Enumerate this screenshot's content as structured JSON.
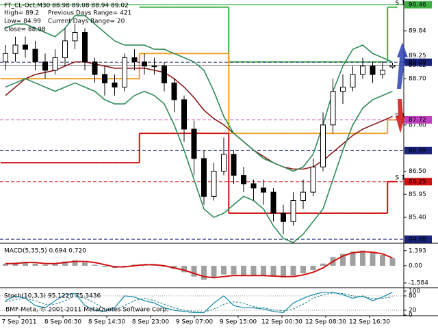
{
  "chart_data": [
    {
      "type": "candlestick",
      "title": "FT_CL-Oct,M30  88.98 89.08 88.94 89.02",
      "info": [
        "High= 89.2",
        "Low= 84.99",
        "Close= 88.98"
      ],
      "ranges": [
        "Previous Days Range= 421",
        "Current Days Range= 20"
      ],
      "x_labels": [
        "7 Sep 2011",
        "8 Sep 06:30",
        "8 Sep 14:30",
        "8 Sep 23:00",
        "9 Sep 07:00",
        "9 Sep 15:00",
        "12 Sep 00:30",
        "12 Sep 08:30",
        "12 Sep 16:30"
      ],
      "open": [
        89.1,
        89.3,
        89.5,
        89.4,
        89.1,
        88.9,
        89.2,
        89.6,
        89.8,
        89.1,
        88.8,
        88.6,
        88.5,
        89.2,
        89.1,
        89.0,
        89.0,
        88.6,
        88.2,
        87.5,
        86.8,
        85.9,
        86.5,
        86.9,
        86.4,
        86.2,
        86.1,
        86.0,
        85.5,
        85.3,
        85.8,
        86.0,
        86.6,
        87.6,
        88.4,
        88.5,
        88.8,
        89.0,
        88.8,
        88.98
      ],
      "high": [
        89.5,
        89.7,
        89.7,
        89.6,
        89.3,
        89.4,
        89.9,
        90.0,
        89.9,
        89.2,
        89.0,
        88.8,
        89.3,
        89.4,
        89.3,
        89.2,
        89.1,
        88.7,
        88.3,
        87.7,
        87.0,
        86.7,
        87.3,
        87.0,
        86.6,
        86.3,
        86.3,
        86.1,
        85.7,
        86.0,
        86.3,
        86.8,
        87.9,
        88.7,
        88.8,
        89.0,
        89.2,
        89.1,
        89.1,
        89.08
      ],
      "low": [
        88.9,
        89.1,
        89.2,
        88.9,
        88.7,
        88.8,
        89.0,
        89.4,
        88.9,
        88.6,
        88.3,
        88.3,
        88.4,
        88.9,
        88.8,
        88.8,
        88.4,
        87.9,
        87.2,
        86.4,
        85.7,
        85.8,
        86.4,
        86.2,
        86.0,
        85.8,
        85.7,
        85.3,
        85.0,
        85.2,
        85.6,
        85.9,
        86.5,
        87.4,
        88.1,
        88.4,
        88.7,
        88.6,
        88.7,
        88.94
      ],
      "close": [
        89.3,
        89.5,
        89.4,
        89.1,
        88.9,
        89.2,
        89.6,
        89.8,
        89.1,
        88.8,
        88.6,
        88.5,
        89.2,
        89.1,
        89.0,
        89.0,
        88.6,
        88.2,
        87.5,
        86.8,
        85.9,
        86.5,
        86.9,
        86.4,
        86.2,
        86.1,
        86.0,
        85.5,
        85.3,
        85.8,
        86.0,
        86.6,
        87.6,
        88.4,
        88.5,
        88.8,
        89.0,
        88.8,
        88.9,
        89.02
      ],
      "bull_color": "#ffffff",
      "bear_color": "#000000",
      "ylim": [
        84.8,
        90.54
      ],
      "yticks": [
        {
          "value": 89.84,
          "label": "89.84"
        },
        {
          "value": 89.25,
          "label": "89.25"
        },
        {
          "value": 88.7,
          "label": "88.70"
        },
        {
          "value": 87.6,
          "label": "87.60"
        },
        {
          "value": 86.5,
          "label": "86.50"
        },
        {
          "value": 85.95,
          "label": "85.95"
        },
        {
          "value": 85.4,
          "label": "85.40"
        }
      ],
      "lines": [
        {
          "color": "#8b1a1a",
          "values": [
            88.3,
            88.5,
            88.7,
            88.8,
            88.85,
            88.9,
            89.0,
            89.1,
            89.1,
            89.05,
            89.0,
            88.95,
            88.95,
            88.95,
            88.95,
            88.9,
            88.85,
            88.7,
            88.5,
            88.25,
            87.95,
            87.75,
            87.6,
            87.4,
            87.2,
            87.0,
            86.85,
            86.7,
            86.6,
            86.55,
            86.55,
            86.6,
            86.75,
            86.95,
            87.15,
            87.35,
            87.5,
            87.6,
            87.7,
            87.8
          ]
        },
        {
          "color": "#2e8b57",
          "values": [
            89.9,
            90.0,
            90.0,
            89.9,
            89.8,
            89.7,
            89.9,
            90.2,
            90.2,
            90.0,
            89.8,
            89.6,
            89.5,
            89.5,
            89.5,
            89.4,
            89.4,
            89.3,
            89.2,
            89.1,
            88.9,
            88.4,
            87.8,
            87.4,
            87.2,
            87.0,
            86.8,
            86.7,
            86.6,
            86.5,
            86.6,
            86.9,
            87.6,
            88.4,
            89.0,
            89.4,
            89.5,
            89.3,
            89.2,
            89.1
          ]
        },
        {
          "color": "#2e8b57",
          "values": [
            88.5,
            88.6,
            88.7,
            88.6,
            88.5,
            88.4,
            88.5,
            88.6,
            88.5,
            88.4,
            88.2,
            88.1,
            88.1,
            88.3,
            88.4,
            88.3,
            88.1,
            87.6,
            87.0,
            86.3,
            85.6,
            85.4,
            85.5,
            85.7,
            85.9,
            85.8,
            85.6,
            85.2,
            84.9,
            84.8,
            85.0,
            85.3,
            85.6,
            86.3,
            87.0,
            87.6,
            88.0,
            88.2,
            88.3,
            88.4
          ]
        }
      ],
      "levels": [
        {
          "color": "#3cb043",
          "label": "S 1",
          "values": [
            null,
            null,
            null,
            null,
            null,
            null,
            null,
            null,
            null,
            null,
            null,
            null,
            null,
            null,
            90.4,
            90.4,
            90.4,
            90.4,
            90.4,
            90.4,
            90.4,
            90.4,
            90.4,
            89.1,
            89.1,
            89.1,
            89.1,
            89.1,
            89.1,
            89.1,
            89.1,
            89.1,
            89.1,
            89.1,
            89.1,
            89.1,
            89.1,
            89.1,
            89.1,
            90.4
          ]
        },
        {
          "color": "#f0a020",
          "label": "S 1",
          "values": [
            88.7,
            88.7,
            88.7,
            88.7,
            88.7,
            88.7,
            88.7,
            88.7,
            88.7,
            88.7,
            88.7,
            88.7,
            88.7,
            88.7,
            89.3,
            89.3,
            89.3,
            89.3,
            89.3,
            89.3,
            89.3,
            89.3,
            89.3,
            87.4,
            87.4,
            87.4,
            87.4,
            87.4,
            87.4,
            87.4,
            87.4,
            87.4,
            87.4,
            87.4,
            87.4,
            87.4,
            87.4,
            87.4,
            87.4,
            87.72
          ]
        },
        {
          "color": "#d01010",
          "label": "S 1",
          "values": [
            86.7,
            86.7,
            86.7,
            86.7,
            86.7,
            86.7,
            86.7,
            86.7,
            86.7,
            86.7,
            86.7,
            86.7,
            86.7,
            86.7,
            87.4,
            87.4,
            87.4,
            87.4,
            87.4,
            87.4,
            87.4,
            87.4,
            87.4,
            85.5,
            85.5,
            85.5,
            85.5,
            85.5,
            85.5,
            85.5,
            85.5,
            85.5,
            85.5,
            85.5,
            85.5,
            85.5,
            85.5,
            85.5,
            85.5,
            86.25
          ]
        }
      ],
      "price_lines": [
        {
          "value": 90.46,
          "color": "#3cb043",
          "dashed": false
        },
        {
          "value": 89.09,
          "color": "#1a237e",
          "dashed": true
        },
        {
          "value": 89.02,
          "color": "#888888",
          "dashed": false
        },
        {
          "value": 87.72,
          "color": "#c040c0",
          "dashed": true
        },
        {
          "value": 86.99,
          "color": "#1a237e",
          "dashed": true
        },
        {
          "value": 86.25,
          "color": "#d01010",
          "dashed": true
        },
        {
          "value": 84.88,
          "color": "#1a237e",
          "dashed": true
        }
      ]
    },
    {
      "type": "macd",
      "title": "MACD(5,35,5) 0.694 0.720",
      "ylim": [
        -1.96,
        1.95
      ],
      "yticks": [
        1.393,
        {
          "value": 0,
          "label": "0.00"
        },
        -1.584
      ],
      "hist_color": "#a0a0a0",
      "signal_color": "#d01010",
      "histogram": [
        0.2,
        0.3,
        0.3,
        0.2,
        0.1,
        0.2,
        0.4,
        0.5,
        0.3,
        0.1,
        -0.1,
        -0.2,
        0.0,
        0.1,
        0.1,
        0.1,
        -0.1,
        -0.3,
        -0.6,
        -1.0,
        -1.3,
        -1.1,
        -0.8,
        -0.8,
        -0.9,
        -0.9,
        -0.9,
        -1.0,
        -1.1,
        -0.9,
        -0.7,
        -0.4,
        0.2,
        0.8,
        1.1,
        1.3,
        1.4,
        1.2,
        1.0,
        0.694
      ],
      "signal": [
        0.2,
        0.2,
        0.3,
        0.3,
        0.2,
        0.2,
        0.3,
        0.4,
        0.4,
        0.3,
        0.1,
        -0.1,
        -0.1,
        0.0,
        0.1,
        0.1,
        0.0,
        -0.2,
        -0.4,
        -0.7,
        -1.0,
        -1.1,
        -1.0,
        -0.9,
        -0.9,
        -0.9,
        -0.9,
        -0.95,
        -1.0,
        -1.0,
        -0.85,
        -0.6,
        -0.2,
        0.4,
        0.9,
        1.2,
        1.3,
        1.25,
        1.1,
        0.72
      ]
    },
    {
      "type": "stoch",
      "title": "Stoch(10,3,3) 95.1220 75.3436",
      "watermark": "BMF-Meta, © 2001-2011 MetaQuotes Software Corp.",
      "ylim": [
        0,
        100
      ],
      "yticks": [
        100,
        80,
        20,
        0
      ],
      "main_color": "#2090b0",
      "signal_color": "#208080",
      "main": [
        60,
        80,
        70,
        40,
        30,
        60,
        85,
        90,
        40,
        20,
        15,
        30,
        80,
        75,
        60,
        50,
        30,
        20,
        15,
        10,
        10,
        50,
        80,
        40,
        30,
        30,
        25,
        15,
        10,
        50,
        70,
        85,
        95,
        95,
        85,
        70,
        80,
        60,
        75,
        95.122
      ],
      "signal": [
        55,
        65,
        70,
        60,
        45,
        45,
        60,
        80,
        70,
        50,
        25,
        20,
        40,
        60,
        70,
        60,
        45,
        30,
        20,
        15,
        12,
        25,
        45,
        55,
        50,
        35,
        30,
        22,
        17,
        25,
        45,
        70,
        85,
        92,
        90,
        80,
        75,
        70,
        70,
        75.3436
      ]
    }
  ]
}
